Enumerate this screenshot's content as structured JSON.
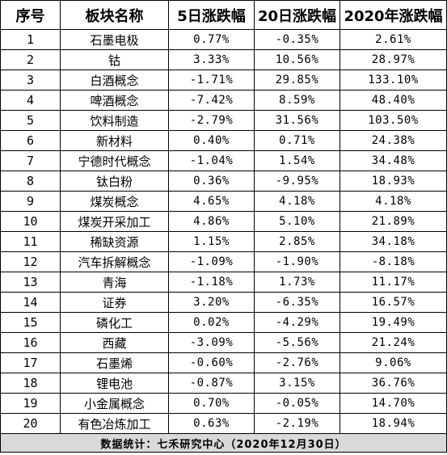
{
  "table": {
    "headers": {
      "index": "序号",
      "name": "板块名称",
      "change_5d": "5日涨跌幅",
      "change_20d": "20日涨跌幅",
      "change_2020": "2020年涨跌幅"
    },
    "rows": [
      {
        "index": "1",
        "name": "石墨电极",
        "change_5d": "0.77%",
        "change_20d": "-0.35%",
        "change_2020": "2.61%"
      },
      {
        "index": "2",
        "name": "钴",
        "change_5d": "3.33%",
        "change_20d": "10.56%",
        "change_2020": "28.97%"
      },
      {
        "index": "3",
        "name": "白酒概念",
        "change_5d": "-1.71%",
        "change_20d": "29.85%",
        "change_2020": "133.10%"
      },
      {
        "index": "4",
        "name": "啤酒概念",
        "change_5d": "-7.42%",
        "change_20d": "8.59%",
        "change_2020": "48.40%"
      },
      {
        "index": "5",
        "name": "饮料制造",
        "change_5d": "-2.79%",
        "change_20d": "31.56%",
        "change_2020": "103.50%"
      },
      {
        "index": "6",
        "name": "新材料",
        "change_5d": "0.40%",
        "change_20d": "0.71%",
        "change_2020": "24.38%"
      },
      {
        "index": "7",
        "name": "宁德时代概念",
        "change_5d": "-1.04%",
        "change_20d": "1.54%",
        "change_2020": "34.48%"
      },
      {
        "index": "8",
        "name": "钛白粉",
        "change_5d": "0.36%",
        "change_20d": "-9.95%",
        "change_2020": "18.93%"
      },
      {
        "index": "9",
        "name": "煤炭概念",
        "change_5d": "4.65%",
        "change_20d": "4.18%",
        "change_2020": "4.18%"
      },
      {
        "index": "10",
        "name": "煤炭开采加工",
        "change_5d": "4.86%",
        "change_20d": "5.10%",
        "change_2020": "21.89%"
      },
      {
        "index": "11",
        "name": "稀缺资源",
        "change_5d": "1.15%",
        "change_20d": "2.85%",
        "change_2020": "34.18%"
      },
      {
        "index": "12",
        "name": "汽车拆解概念",
        "change_5d": "-1.09%",
        "change_20d": "-1.90%",
        "change_2020": "-8.18%"
      },
      {
        "index": "13",
        "name": "青海",
        "change_5d": "-1.18%",
        "change_20d": "1.73%",
        "change_2020": "11.17%"
      },
      {
        "index": "14",
        "name": "证券",
        "change_5d": "3.20%",
        "change_20d": "-6.35%",
        "change_2020": "16.57%"
      },
      {
        "index": "15",
        "name": "磷化工",
        "change_5d": "0.02%",
        "change_20d": "-4.29%",
        "change_2020": "19.49%"
      },
      {
        "index": "16",
        "name": "西藏",
        "change_5d": "-3.09%",
        "change_20d": "-5.56%",
        "change_2020": "21.24%"
      },
      {
        "index": "17",
        "name": "石墨烯",
        "change_5d": "-0.60%",
        "change_20d": "-2.76%",
        "change_2020": "9.06%"
      },
      {
        "index": "18",
        "name": "锂电池",
        "change_5d": "-0.87%",
        "change_20d": "3.15%",
        "change_2020": "36.76%"
      },
      {
        "index": "19",
        "name": "小金属概念",
        "change_5d": "0.70%",
        "change_20d": "-0.05%",
        "change_2020": "14.70%"
      },
      {
        "index": "20",
        "name": "有色冶炼加工",
        "change_5d": "0.63%",
        "change_20d": "-2.19%",
        "change_2020": "18.94%"
      }
    ],
    "footer": "数据统计：七禾研究中心（2020年12月30日）"
  },
  "colors": {
    "border": "#000000",
    "footer_background": "#d9d9d9",
    "background": "#ffffff"
  }
}
